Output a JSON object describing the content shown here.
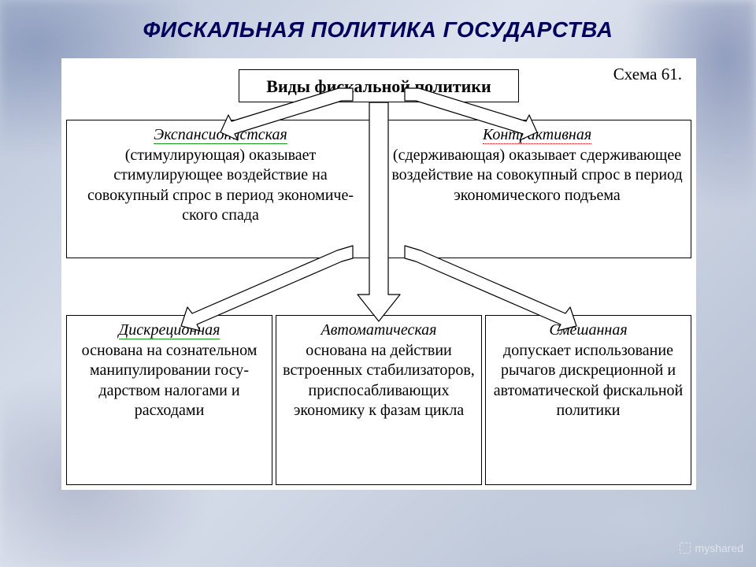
{
  "slide": {
    "title": "ФИСКАЛЬНАЯ ПОЛИТИКА ГОСУДАРСТВА",
    "title_color": "#00005c",
    "title_fontsize": 28
  },
  "diagram": {
    "scheme_label": "Схема 61.",
    "background": "#ffffff",
    "border_color": "#000000",
    "root": {
      "text": "Виды фискальной политики",
      "fontweight": "bold",
      "fontsize": 22
    },
    "row1": {
      "left": {
        "term": "Экспансионистская",
        "term_underline_color": "#1a9a1a",
        "body": "(стимулирующая) оказывает стимулирующее воздействие на совокупный спрос в период экономиче­ского спада"
      },
      "right": {
        "term": "Контрактивная",
        "term_underline_color": "#cc0000",
        "body": "(сдерживающая) оказывает сдерживающее воздействие на совокупный спрос в период экономическо­го подъема"
      }
    },
    "row2": {
      "left": {
        "term": "Дискреционная",
        "term_underline_color": "#1a9a1a",
        "body": "основана на созна­тельном манипу­лировании госу­дарством налога­ми и расходами"
      },
      "mid": {
        "term": "Автоматическая",
        "body": "основана на действии встроенных стабили­заторов, приспосаб­ливающих экономику к фазам цикла"
      },
      "right": {
        "term": "Смешанная",
        "body": "допускает исполь­зование рычагов дискреционной и автоматической фискальной поли­тики"
      }
    },
    "arrows": {
      "stroke": "#000000",
      "fill": "#ffffff",
      "stroke_width": 1.2,
      "paths": [
        "M370,54 L356,54 L220,96 L224,104 L202,94 L212,72 L216,80 L352,38 L370,38 Z",
        "M436,54 L450,54 L586,96 L582,104 L604,94 L594,72 L590,80 L454,38 L436,38 Z",
        "M370,254 L356,258 L172,338 L176,346 L152,340 L160,316 L166,324 L350,244 L370,238 Z",
        "M436,254 L450,258 L634,338 L630,346 L654,340 L646,316 L640,324 L456,244 L436,238 Z",
        "M391,56 L391,300 L376,300 L403,334 L430,300 L415,300 L415,56 Z"
      ]
    },
    "box_fontsize": 20,
    "term_fontstyle": "italic"
  },
  "watermark": {
    "text": "myshared",
    "color": "rgba(255,255,255,0.55)"
  }
}
